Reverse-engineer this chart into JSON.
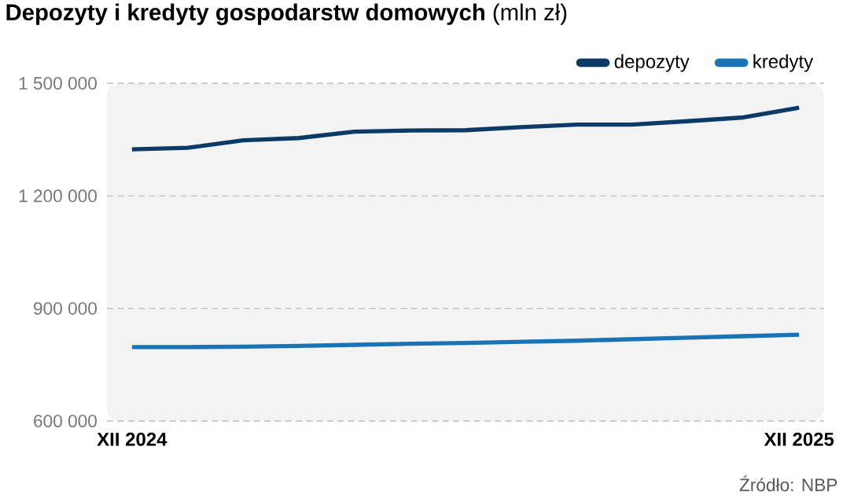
{
  "chart_data": {
    "type": "line",
    "title": "**Depozyty i kredyty gospodarstw domowych** (mln zł)",
    "categories": [
      "XII 2024",
      null,
      null,
      null,
      null,
      null,
      null,
      null,
      null,
      null,
      null,
      null,
      "XII 2025"
    ],
    "series": [
      {
        "name": "depozyty",
        "color": "#0b3a66",
        "values": [
          1324000,
          1328000,
          1348000,
          1354000,
          1371000,
          1374000,
          1375000,
          1383000,
          1390000,
          1390000,
          1399000,
          1409000,
          1435000
        ]
      },
      {
        "name": "kredyty",
        "color": "#1a73b5",
        "values": [
          797000,
          797000,
          798000,
          800000,
          803000,
          806000,
          808000,
          811000,
          814000,
          818000,
          822000,
          826000,
          830000
        ]
      }
    ],
    "ylim": [
      600000,
      1500000
    ],
    "yticks": [
      {
        "value": 600000,
        "label": "600 000"
      },
      {
        "value": 900000,
        "label": "900 000"
      },
      {
        "value": 1200000,
        "label": "1 200 000"
      },
      {
        "value": 1500000,
        "label": "1 500 000"
      }
    ],
    "grid": "y",
    "legend": "top right",
    "marker": "none",
    "line_style": "solid",
    "annotations": [
      "Źródło: NBP"
    ]
  }
}
